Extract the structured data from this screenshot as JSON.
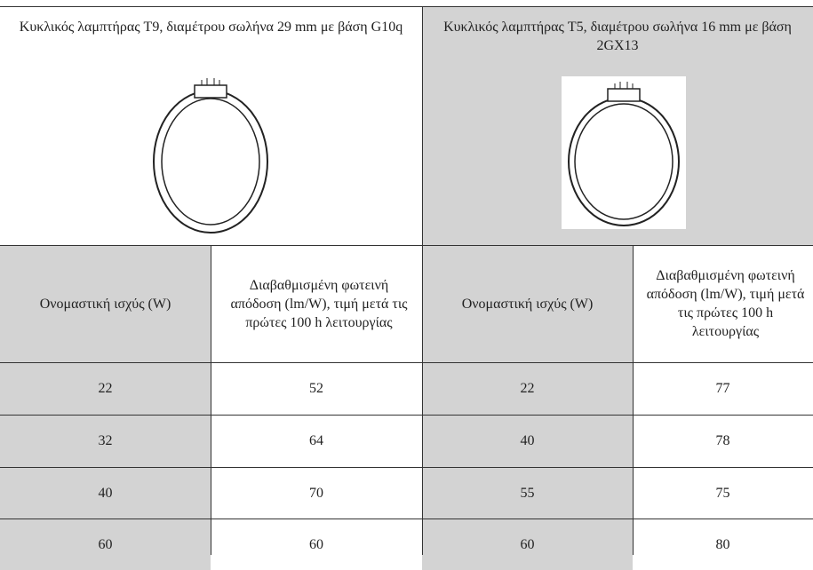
{
  "header": {
    "left": "Κυκλικός λαμπτήρας T9, διαμέτρου σωλήνα 29 mm με βάση G10q",
    "right": "Κυκλικός λαμπτήρας T5, διαμέτρου σωλήνα 16 mm με βάση 2GX13"
  },
  "table": {
    "columns": [
      "Ονομαστική ισχύς (W)",
      "Διαβαθμισμένη φωτεινή απόδοση (lm/W), τιμή μετά τις πρώτες 100 h λειτουργίας",
      "Ονομαστική ισχύς (W)",
      "Διαβαθμισμένη φωτεινή απόδοση (lm/W), τιμή μετά τις πρώτες 100 h λειτουργίας"
    ],
    "rows": [
      [
        "22",
        "52",
        "22",
        "77"
      ],
      [
        "32",
        "64",
        "40",
        "78"
      ],
      [
        "40",
        "70",
        "55",
        "75"
      ],
      [
        "60",
        "60",
        "60",
        "80"
      ]
    ]
  }
}
